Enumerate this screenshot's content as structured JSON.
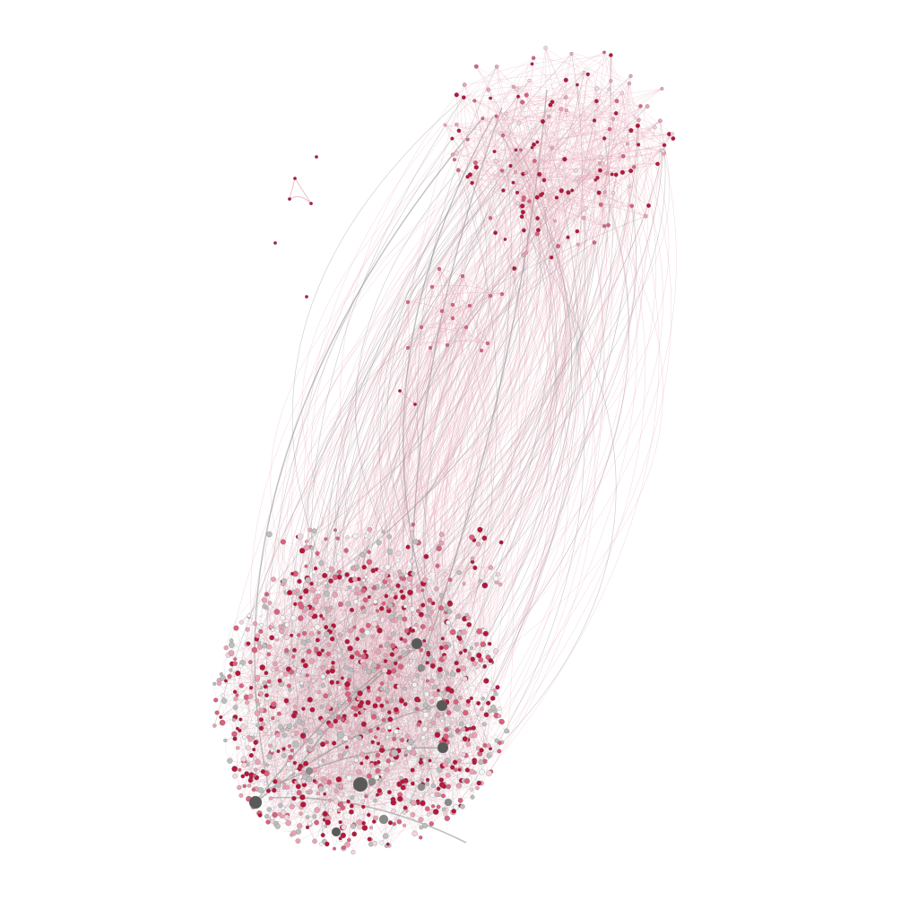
{
  "graph": {
    "type": "network",
    "layout": "force-directed",
    "text_labels": [],
    "palette": {
      "background": "#ffffff",
      "node_red": "#b5173a",
      "node_rose": "#d9617d",
      "node_pink": "#e9a2b4",
      "node_blush": "#f3d3dc",
      "node_white": "#f4f4f4",
      "node_silver": "#bdbdbd",
      "node_grey": "#8a8a8a",
      "node_charcoal": "#595959",
      "edge_pink": "#e3a3b3",
      "edge_grey": "#8c8c8c",
      "node_stroke": "#7a7a7a"
    },
    "clusters": [
      {
        "name": "dense-core",
        "approx_nodes": 1300
      },
      {
        "name": "upper-right-community",
        "approx_nodes": 150
      },
      {
        "name": "middle-community",
        "approx_nodes": 30
      },
      {
        "name": "upper-left-fragment",
        "approx_nodes": 5
      },
      {
        "name": "dyad",
        "approx_nodes": 2
      }
    ]
  }
}
